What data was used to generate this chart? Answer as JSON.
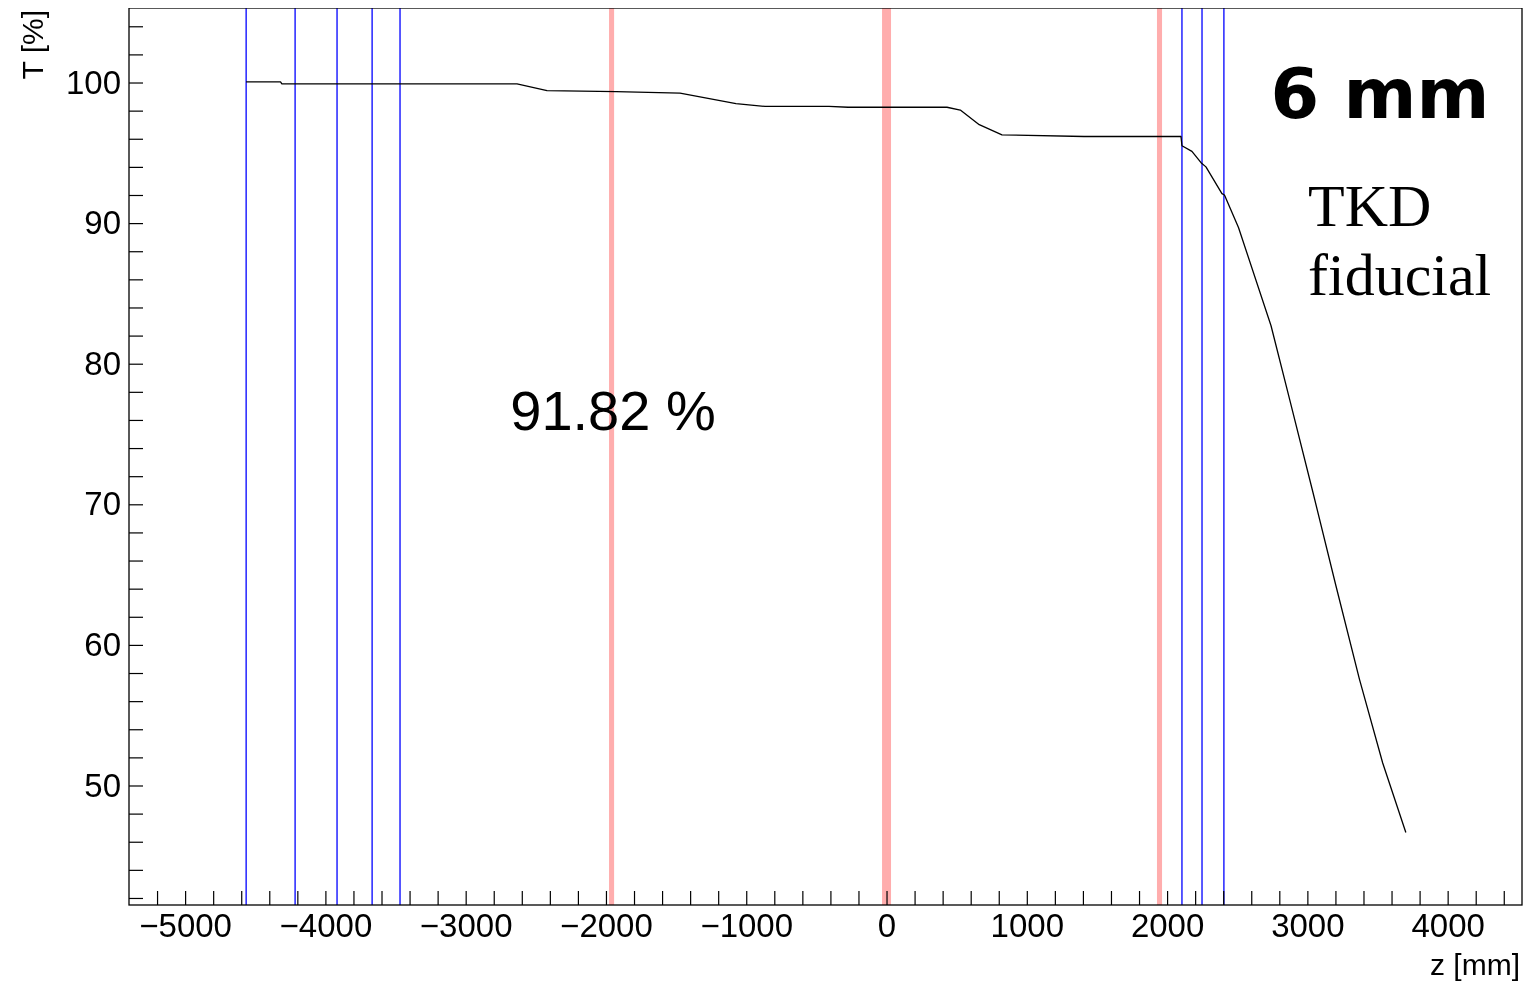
{
  "chart_data": {
    "type": "line",
    "xlabel": "z [mm]",
    "ylabel": "T [%]",
    "annotations": [
      "6 mm",
      "TKD\nfiducial",
      "91.82 %"
    ],
    "x": [
      -4565,
      -4320,
      -4310,
      -2634,
      -2420,
      -1928,
      -1472,
      -1073,
      -866,
      -410,
      -274,
      431,
      526,
      661,
      823,
      1408,
      2099,
      2106,
      2177,
      2242,
      2277,
      2391,
      2409,
      2509,
      2741,
      2874,
      3040,
      3204,
      3371,
      3537,
      3702
    ],
    "series": [
      {
        "color": "#000000",
        "values": [
          100.05,
          100.05,
          99.9,
          99.9,
          99.43,
          99.35,
          99.25,
          98.5,
          98.3,
          98.3,
          98.24,
          98.24,
          98.04,
          97.0,
          96.28,
          96.16,
          96.16,
          95.5,
          95.1,
          94.3,
          94.0,
          92.1,
          92.0,
          89.69,
          82.7,
          77.45,
          70.84,
          64.19,
          57.57,
          51.6,
          46.66
        ]
      }
    ],
    "xlim": [
      -5400,
      4530
    ],
    "xticks": [
      {
        "value": -5200,
        "label": null
      },
      -5000,
      {
        "value": -4800,
        "label": null
      },
      {
        "value": -4600,
        "label": null
      },
      {
        "value": -4400,
        "label": null
      },
      {
        "value": -4200,
        "label": null
      },
      -4000,
      {
        "value": -3800,
        "label": null
      },
      {
        "value": -3600,
        "label": null
      },
      {
        "value": -3400,
        "label": null
      },
      {
        "value": -3200,
        "label": null
      },
      -3000,
      {
        "value": -2800,
        "label": null
      },
      {
        "value": -2600,
        "label": null
      },
      {
        "value": -2400,
        "label": null
      },
      {
        "value": -2200,
        "label": null
      },
      -2000,
      {
        "value": -1800,
        "label": null
      },
      {
        "value": -1600,
        "label": null
      },
      {
        "value": -1400,
        "label": null
      },
      {
        "value": -1200,
        "label": null
      },
      -1000,
      {
        "value": -800,
        "label": null
      },
      {
        "value": -600,
        "label": null
      },
      {
        "value": -400,
        "label": null
      },
      {
        "value": -200,
        "label": null
      },
      0,
      {
        "value": 200,
        "label": null
      },
      {
        "value": 400,
        "label": null
      },
      {
        "value": 600,
        "label": null
      },
      {
        "value": 800,
        "label": null
      },
      1000,
      {
        "value": 1200,
        "label": null
      },
      {
        "value": 1400,
        "label": null
      },
      {
        "value": 1600,
        "label": null
      },
      {
        "value": 1800,
        "label": null
      },
      2000,
      {
        "value": 2200,
        "label": null
      },
      {
        "value": 2400,
        "label": null
      },
      {
        "value": 2600,
        "label": null
      },
      {
        "value": 2800,
        "label": null
      },
      3000,
      {
        "value": 3200,
        "label": null
      },
      {
        "value": 3400,
        "label": null
      },
      {
        "value": 3600,
        "label": null
      },
      {
        "value": 3800,
        "label": null
      },
      4000,
      {
        "value": 4200,
        "label": null
      },
      {
        "value": 4400,
        "label": null
      }
    ],
    "ylim": [
      41.5,
      105.3
    ],
    "yticks": [
      {
        "value": 42,
        "label": null
      },
      {
        "value": 44,
        "label": null
      },
      {
        "value": 46,
        "label": null
      },
      {
        "value": 48,
        "label": null
      },
      50,
      {
        "value": 52,
        "label": null
      },
      {
        "value": 54,
        "label": null
      },
      {
        "value": 56,
        "label": null
      },
      {
        "value": 58,
        "label": null
      },
      60,
      {
        "value": 62,
        "label": null
      },
      {
        "value": 64,
        "label": null
      },
      {
        "value": 66,
        "label": null
      },
      {
        "value": 68,
        "label": null
      },
      70,
      {
        "value": 72,
        "label": null
      },
      {
        "value": 74,
        "label": null
      },
      {
        "value": 76,
        "label": null
      },
      {
        "value": 78,
        "label": null
      },
      80,
      {
        "value": 82,
        "label": null
      },
      {
        "value": 84,
        "label": null
      },
      {
        "value": 86,
        "label": null
      },
      {
        "value": 88,
        "label": null
      },
      90,
      {
        "value": 92,
        "label": null
      },
      {
        "value": 94,
        "label": null
      },
      {
        "value": 96,
        "label": null
      },
      {
        "value": 98,
        "label": null
      },
      100,
      {
        "value": 102,
        "label": null
      },
      {
        "value": 104,
        "label": null
      }
    ],
    "ref_lines": [
      {
        "axis": "x",
        "value": -4565,
        "color": "#0000ff"
      },
      {
        "axis": "x",
        "value": -4216,
        "color": "#0000ff"
      },
      {
        "axis": "x",
        "value": -3917,
        "color": "#0000ff"
      },
      {
        "axis": "x",
        "value": -3667,
        "color": "#0000ff"
      },
      {
        "axis": "x",
        "value": -3468,
        "color": "#0000ff"
      },
      {
        "axis": "x",
        "value": 2106,
        "color": "#0000ff"
      },
      {
        "axis": "x",
        "value": 2249,
        "color": "#0000ff"
      },
      {
        "axis": "x",
        "value": 2405,
        "color": "#0000ff"
      }
    ],
    "bands": [
      {
        "axis": "x",
        "from": -1978,
        "to": -1942,
        "color": "#ff9999"
      },
      {
        "axis": "x",
        "from": -32,
        "to": 32,
        "color": "#ff9999"
      },
      {
        "axis": "x",
        "from": 1928,
        "to": 1964,
        "color": "#ff9999"
      }
    ],
    "grid": false,
    "marker": "none",
    "line_style": "solid"
  }
}
